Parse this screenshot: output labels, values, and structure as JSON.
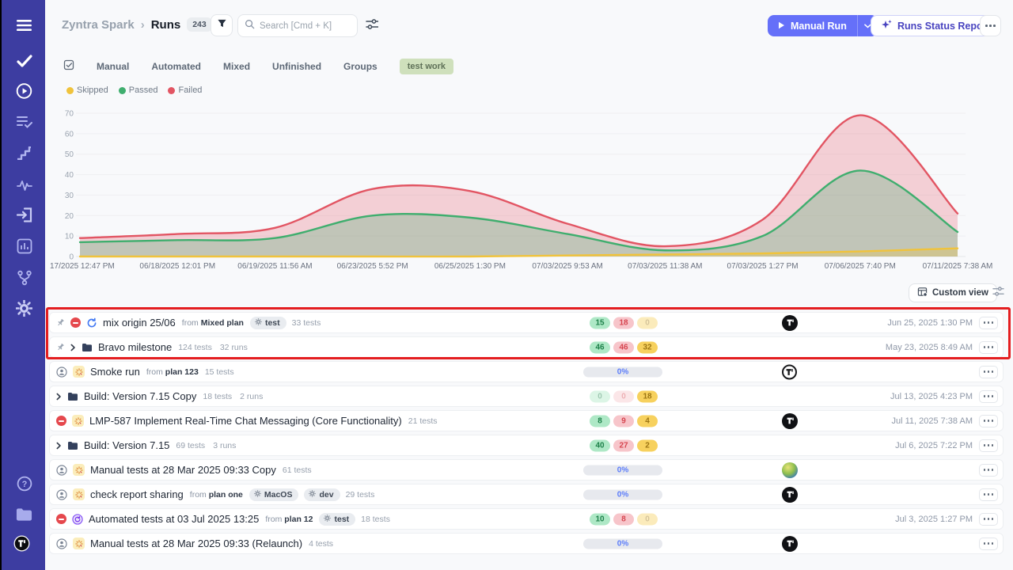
{
  "header": {
    "project": "Zyntra Spark",
    "separator": "›",
    "page": "Runs",
    "count": "243",
    "search_placeholder": "Search [Cmd + K]",
    "manual_run": "Manual Run",
    "runs_status_report": "Runs Status Report"
  },
  "sidebar": {
    "top_icons": [
      "menu-icon",
      "check-icon",
      "play-circle-icon",
      "test-list-icon",
      "steps-icon",
      "activity-icon",
      "import-icon",
      "reports-icon",
      "branch-icon",
      "settings-gear-icon"
    ],
    "bottom_icons": [
      "help-icon",
      "projects-folder-icon",
      "workspace-logo"
    ]
  },
  "tabs": {
    "items": [
      "Manual",
      "Automated",
      "Mixed",
      "Unfinished",
      "Groups"
    ],
    "tag": "test work"
  },
  "legend": {
    "items": [
      {
        "label": "Skipped",
        "color": "#f0c33c"
      },
      {
        "label": "Passed",
        "color": "#3fae6e"
      },
      {
        "label": "Failed",
        "color": "#e25563"
      }
    ]
  },
  "chart_data": {
    "type": "area",
    "title": "",
    "xlabel": "",
    "ylabel": "",
    "x": [
      "17/2025 12:47 PM",
      "06/18/2025 12:01 PM",
      "06/19/2025 11:56 AM",
      "06/23/2025 5:52 PM",
      "06/25/2025 1:30 PM",
      "07/03/2025 9:53 AM",
      "07/03/2025 11:38 AM",
      "07/03/2025 1:27 PM",
      "07/06/2025 7:40 PM",
      "07/11/2025 7:38 AM"
    ],
    "series": [
      {
        "name": "Skipped",
        "color": "#f0c33c",
        "values": [
          0,
          0,
          0,
          0,
          0,
          0.5,
          1,
          1.5,
          2.5,
          4
        ]
      },
      {
        "name": "Passed",
        "color": "#3fae6e",
        "values": [
          7,
          8,
          9,
          20,
          19,
          11,
          3,
          10,
          42,
          12
        ]
      },
      {
        "name": "Failed",
        "color": "#e25563",
        "values": [
          9,
          11,
          14,
          33,
          32,
          16,
          5,
          18,
          69,
          21
        ]
      }
    ],
    "ylim": [
      0,
      70
    ],
    "yticks": [
      0,
      10,
      20,
      30,
      40,
      50,
      60,
      70
    ],
    "grid": true,
    "legend_position": "top-left"
  },
  "toolbar": {
    "custom_view": "Custom view"
  },
  "table": {
    "from_label": "from",
    "rows": [
      {
        "pinned": true,
        "status": "blocked",
        "icon": "sync",
        "title": "mix origin 25/06",
        "from": "Mixed plan",
        "tags": [
          "test"
        ],
        "meta": [
          "33 tests"
        ],
        "pills": [
          {
            "value": "15",
            "kind": "passed"
          },
          {
            "value": "18",
            "kind": "failed"
          },
          {
            "value": "0",
            "kind": "skipped",
            "faded": true
          }
        ],
        "avatar": "dark",
        "date": "Jun 25, 2025 1:30 PM"
      },
      {
        "pinned": true,
        "chevron": true,
        "icon": "folder",
        "title": "Bravo milestone",
        "meta": [
          "124 tests",
          "32 runs"
        ],
        "pills": [
          {
            "value": "46",
            "kind": "passed"
          },
          {
            "value": "46",
            "kind": "failed"
          },
          {
            "value": "32",
            "kind": "skipped"
          }
        ],
        "date": "May 23, 2025 8:49 AM"
      },
      {
        "status": "user",
        "icon": "spinner",
        "title": "Smoke run",
        "from": "plan 123",
        "meta": [
          "15 tests"
        ],
        "progress": "0%",
        "avatar": "outline",
        "date": ""
      },
      {
        "chevron": true,
        "icon": "folder",
        "title": "Build: Version 7.15 Copy",
        "meta": [
          "18 tests",
          "2 runs"
        ],
        "pills": [
          {
            "value": "0",
            "kind": "passed",
            "faded": true
          },
          {
            "value": "0",
            "kind": "failed",
            "faded": true
          },
          {
            "value": "18",
            "kind": "skipped"
          }
        ],
        "date": "Jul 13, 2025 4:23 PM"
      },
      {
        "status": "blocked",
        "icon": "spinner",
        "title": "LMP-587 Implement Real-Time Chat Messaging (Core Functionality)",
        "meta": [
          "21 tests"
        ],
        "pills": [
          {
            "value": "8",
            "kind": "passed"
          },
          {
            "value": "9",
            "kind": "failed"
          },
          {
            "value": "4",
            "kind": "skipped"
          }
        ],
        "avatar": "dark",
        "date": "Jul 11, 2025 7:38 AM"
      },
      {
        "chevron": true,
        "icon": "folder",
        "title": "Build: Version 7.15",
        "meta": [
          "69 tests",
          "3 runs"
        ],
        "pills": [
          {
            "value": "40",
            "kind": "passed"
          },
          {
            "value": "27",
            "kind": "failed"
          },
          {
            "value": "2",
            "kind": "skipped"
          }
        ],
        "date": "Jul 6, 2025 7:22 PM"
      },
      {
        "status": "user",
        "icon": "spinner",
        "title": "Manual tests at 28 Mar 2025 09:33 Copy",
        "meta": [
          "61 tests"
        ],
        "progress": "0%",
        "avatar": "photo",
        "date": ""
      },
      {
        "status": "user",
        "icon": "spinner",
        "title": "check report sharing",
        "from": "plan one",
        "tags": [
          "MacOS",
          "dev"
        ],
        "meta": [
          "29 tests"
        ],
        "progress": "0%",
        "avatar": "dark",
        "date": ""
      },
      {
        "status": "blocked",
        "icon": "automation",
        "title": "Automated tests at 03 Jul 2025 13:25",
        "from": "plan 12",
        "tags": [
          "test"
        ],
        "meta": [
          "18 tests"
        ],
        "pills": [
          {
            "value": "10",
            "kind": "passed"
          },
          {
            "value": "8",
            "kind": "failed"
          },
          {
            "value": "0",
            "kind": "skipped",
            "faded": true
          }
        ],
        "date": "Jul 3, 2025 1:27 PM"
      },
      {
        "status": "user",
        "icon": "spinner",
        "title": "Manual tests at 28 Mar 2025 09:33 (Relaunch)",
        "meta": [
          "4 tests"
        ],
        "progress": "0%",
        "avatar": "dark",
        "date": ""
      }
    ]
  },
  "annotation": {
    "color": "#e41e20"
  },
  "colors": {
    "sidebar": "#3d3da1",
    "accent_button": "#6570f9",
    "pill_passed_bg": "#aee8c6",
    "pill_passed_text": "#1d8049",
    "pill_failed_bg": "#f7c5ca",
    "pill_failed_text": "#d6454f",
    "pill_skipped_bg": "#f7d15e",
    "pill_skipped_text": "#9c7514",
    "progress_text": "#5b7cfa"
  }
}
